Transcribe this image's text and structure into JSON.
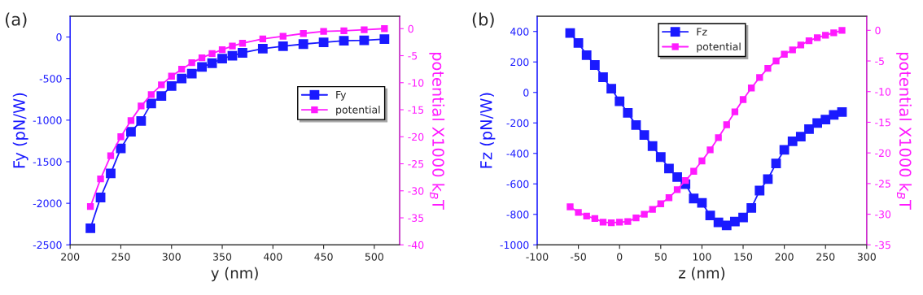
{
  "chart_data": [
    {
      "type": "line",
      "title": "(a)",
      "xlabel": "y (nm)",
      "ylabel": "Fy (pN/W)",
      "y2label": "potential X1000 k$_{B}$T",
      "x": [
        220,
        230,
        240,
        250,
        260,
        270,
        280,
        290,
        300,
        310,
        320,
        330,
        340,
        350,
        360,
        370,
        390,
        410,
        430,
        450,
        470,
        490,
        510
      ],
      "series": [
        {
          "name": "Fy",
          "color": "#1a1aff",
          "values": [
            -2300,
            -1930,
            -1640,
            -1340,
            -1140,
            -1010,
            -800,
            -710,
            -590,
            -500,
            -440,
            -360,
            -315,
            -260,
            -225,
            -190,
            -140,
            -110,
            -85,
            -65,
            -45,
            -40,
            -25
          ]
        },
        {
          "name": "potential",
          "color": "#ff1aff",
          "axis": "y2",
          "values": [
            -32.9,
            -27.8,
            -23.5,
            -20.0,
            -17.0,
            -14.3,
            -12.2,
            -10.4,
            -8.8,
            -7.5,
            -6.3,
            -5.4,
            -4.6,
            -3.9,
            -3.2,
            -2.7,
            -1.9,
            -1.4,
            -0.9,
            -0.5,
            -0.4,
            -0.2,
            0
          ]
        }
      ],
      "xlim": [
        200,
        525
      ],
      "xticks": [
        200,
        250,
        300,
        350,
        400,
        450,
        500
      ],
      "ylim": [
        -2500,
        250
      ],
      "yticks": [
        -2500,
        -2000,
        -1500,
        -1000,
        -500,
        0
      ],
      "y2lim": [
        -40,
        2.3
      ],
      "y2ticks": [
        -40,
        -35,
        -30,
        -25,
        -20,
        -15,
        -10,
        -5,
        0
      ],
      "marker": "square",
      "line_style": "solid",
      "legend": "right",
      "grid": false
    },
    {
      "type": "line",
      "title": "(b)",
      "xlabel": "z (nm)",
      "ylabel": "Fz (pN/W)",
      "y2label": "potential X1000 k$_{B}$T",
      "x": [
        -60,
        -50,
        -40,
        -30,
        -20,
        -10,
        0,
        10,
        20,
        30,
        40,
        50,
        60,
        70,
        80,
        90,
        100,
        110,
        120,
        130,
        140,
        150,
        160,
        170,
        180,
        190,
        200,
        210,
        220,
        230,
        240,
        250,
        260,
        270
      ],
      "series": [
        {
          "name": "Fz",
          "color": "#1a1aff",
          "values": [
            390,
            325,
            245,
            180,
            100,
            25,
            -58,
            -134,
            -214,
            -279,
            -352,
            -424,
            -499,
            -555,
            -602,
            -696,
            -725,
            -807,
            -852,
            -872,
            -847,
            -820,
            -758,
            -644,
            -569,
            -466,
            -377,
            -321,
            -290,
            -241,
            -201,
            -178,
            -147,
            -129
          ]
        },
        {
          "name": "potential",
          "color": "#ff1aff",
          "axis": "y2",
          "values": [
            -28.8,
            -29.7,
            -30.3,
            -30.7,
            -31.3,
            -31.4,
            -31.3,
            -31.2,
            -30.6,
            -30.0,
            -29.2,
            -28.3,
            -27.3,
            -26.0,
            -24.5,
            -23.0,
            -21.3,
            -19.5,
            -17.5,
            -15.4,
            -13.3,
            -11.3,
            -9.4,
            -7.7,
            -6.2,
            -5.0,
            -3.9,
            -3.2,
            -2.4,
            -1.7,
            -1.2,
            -0.8,
            -0.4,
            0
          ]
        }
      ],
      "xlim": [
        -100,
        300
      ],
      "xticks": [
        -100,
        -50,
        0,
        50,
        100,
        150,
        200,
        250,
        300
      ],
      "ylim": [
        -1000,
        500
      ],
      "yticks": [
        -1000,
        -800,
        -600,
        -400,
        -200,
        0,
        200,
        400
      ],
      "y2lim": [
        -35,
        2.3
      ],
      "y2ticks": [
        -35,
        -30,
        -25,
        -20,
        -15,
        -10,
        -5,
        0
      ],
      "marker": "square",
      "line_style": "solid",
      "legend": "top",
      "grid": false
    }
  ]
}
